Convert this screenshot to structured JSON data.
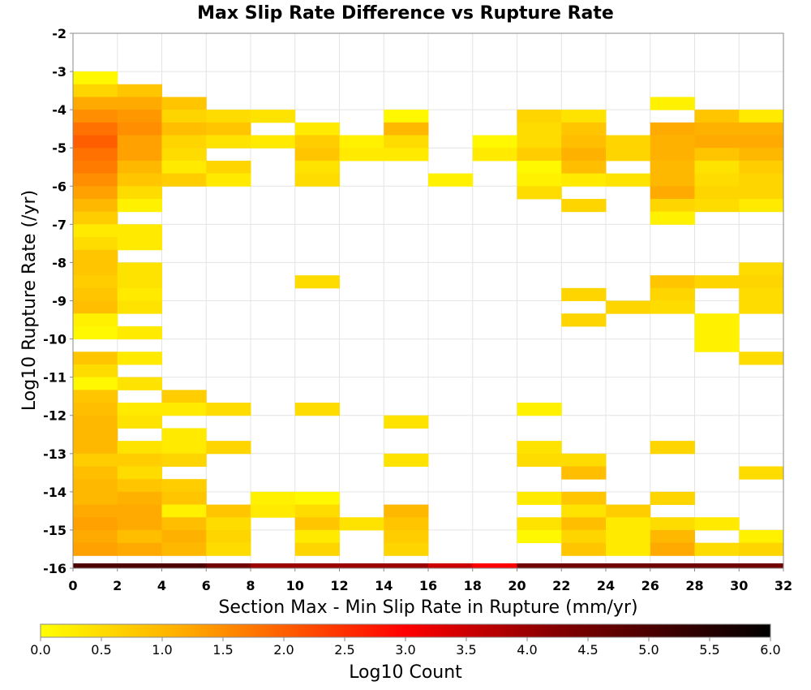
{
  "chart_data": {
    "type": "heatmap",
    "title": "Max Slip Rate Difference vs Rupture Rate",
    "xlabel": "Section Max - Min Slip Rate in Rupture (mm/yr)",
    "ylabel": "Log10 Rupture Rate (/yr)",
    "xlim": [
      0,
      32
    ],
    "ylim": [
      -16,
      -2
    ],
    "x_bin_width": 2,
    "y_bin_width": 0.3333,
    "x_ticks": [
      "0",
      "2",
      "4",
      "6",
      "8",
      "10",
      "12",
      "14",
      "16",
      "18",
      "20",
      "22",
      "24",
      "26",
      "28",
      "30",
      "32"
    ],
    "y_ticks": [
      "-2",
      "-3",
      "-4",
      "-5",
      "-6",
      "-7",
      "-8",
      "-9",
      "-10",
      "-11",
      "-12",
      "-13",
      "-14",
      "-15",
      "-16"
    ],
    "grid": true,
    "colorbar": {
      "label": "Log10 Count",
      "range": [
        0,
        6
      ],
      "ticks": [
        "0.0",
        "0.5",
        "1.0",
        "1.5",
        "2.0",
        "2.5",
        "3.0",
        "3.5",
        "4.0",
        "4.5",
        "5.0",
        "5.5",
        "6.0"
      ],
      "colors": [
        "#ffff00",
        "#ffa500",
        "#ff0000",
        "#000000"
      ]
    },
    "cells": [
      [
        0,
        -3.333,
        0.1
      ],
      [
        0,
        -3.667,
        0.6
      ],
      [
        0,
        -4.0,
        1.2
      ],
      [
        0,
        -4.333,
        1.5
      ],
      [
        0,
        -4.667,
        1.8
      ],
      [
        0,
        -5.0,
        2.0
      ],
      [
        0,
        -5.333,
        1.8
      ],
      [
        0,
        -5.667,
        1.7
      ],
      [
        0,
        -6.0,
        1.5
      ],
      [
        0,
        -6.333,
        1.3
      ],
      [
        0,
        -6.667,
        1.0
      ],
      [
        0,
        -7.0,
        0.7
      ],
      [
        0,
        -7.333,
        0.3
      ],
      [
        0,
        -7.667,
        0.5
      ],
      [
        0,
        -8.0,
        0.8
      ],
      [
        0,
        -8.333,
        0.8
      ],
      [
        0,
        -8.667,
        0.7
      ],
      [
        0,
        -9.0,
        0.8
      ],
      [
        0,
        -9.333,
        0.9
      ],
      [
        0,
        -9.667,
        0.2
      ],
      [
        0,
        -10.0,
        0.1
      ],
      [
        0,
        -10.667,
        0.8
      ],
      [
        0,
        -11.0,
        0.5
      ],
      [
        0,
        -11.333,
        0.1
      ],
      [
        0,
        -11.667,
        0.8
      ],
      [
        0,
        -12.0,
        0.9
      ],
      [
        0,
        -12.333,
        1.0
      ],
      [
        0,
        -12.667,
        1.0
      ],
      [
        0,
        -13.0,
        1.0
      ],
      [
        0,
        -13.333,
        0.7
      ],
      [
        0,
        -13.667,
        0.9
      ],
      [
        0,
        -14.0,
        1.0
      ],
      [
        0,
        -14.333,
        1.0
      ],
      [
        0,
        -14.667,
        1.2
      ],
      [
        0,
        -15.0,
        1.3
      ],
      [
        0,
        -15.333,
        1.2
      ],
      [
        0,
        -15.667,
        1.3
      ],
      [
        0,
        -16.0,
        5.0
      ],
      [
        2,
        -3.667,
        0.8
      ],
      [
        2,
        -4.0,
        1.2
      ],
      [
        2,
        -4.333,
        1.4
      ],
      [
        2,
        -4.667,
        1.5
      ],
      [
        2,
        -5.0,
        1.3
      ],
      [
        2,
        -5.333,
        1.3
      ],
      [
        2,
        -5.667,
        1.0
      ],
      [
        2,
        -6.0,
        0.8
      ],
      [
        2,
        -6.333,
        0.5
      ],
      [
        2,
        -6.667,
        0.2
      ],
      [
        2,
        -7.333,
        0.3
      ],
      [
        2,
        -7.667,
        0.3
      ],
      [
        2,
        -8.333,
        0.4
      ],
      [
        2,
        -8.667,
        0.4
      ],
      [
        2,
        -9.0,
        0.3
      ],
      [
        2,
        -9.333,
        0.4
      ],
      [
        2,
        -10.0,
        0.3
      ],
      [
        2,
        -10.667,
        0.3
      ],
      [
        2,
        -11.333,
        0.4
      ],
      [
        2,
        -12.0,
        0.3
      ],
      [
        2,
        -12.333,
        0.4
      ],
      [
        2,
        -13.0,
        0.4
      ],
      [
        2,
        -13.333,
        0.7
      ],
      [
        2,
        -13.667,
        0.5
      ],
      [
        2,
        -14.0,
        0.8
      ],
      [
        2,
        -14.333,
        1.1
      ],
      [
        2,
        -14.667,
        1.2
      ],
      [
        2,
        -15.0,
        1.2
      ],
      [
        2,
        -15.333,
        0.9
      ],
      [
        2,
        -15.667,
        1.2
      ],
      [
        2,
        -16.0,
        5.0
      ],
      [
        4,
        -4.0,
        0.8
      ],
      [
        4,
        -4.333,
        0.6
      ],
      [
        4,
        -4.667,
        0.9
      ],
      [
        4,
        -5.0,
        0.6
      ],
      [
        4,
        -5.333,
        0.5
      ],
      [
        4,
        -5.667,
        0.3
      ],
      [
        4,
        -6.0,
        0.7
      ],
      [
        4,
        -11.667,
        0.7
      ],
      [
        4,
        -12.0,
        0.3
      ],
      [
        4,
        -12.667,
        0.3
      ],
      [
        4,
        -13.0,
        0.3
      ],
      [
        4,
        -13.333,
        0.6
      ],
      [
        4,
        -14.0,
        0.7
      ],
      [
        4,
        -14.333,
        0.8
      ],
      [
        4,
        -14.667,
        0.2
      ],
      [
        4,
        -15.0,
        0.9
      ],
      [
        4,
        -15.333,
        1.1
      ],
      [
        4,
        -15.667,
        1.0
      ],
      [
        4,
        -16.0,
        5.0
      ],
      [
        6,
        -4.333,
        0.5
      ],
      [
        6,
        -4.667,
        0.8
      ],
      [
        6,
        -5.0,
        0.4
      ],
      [
        6,
        -5.667,
        0.6
      ],
      [
        6,
        -6.0,
        0.3
      ],
      [
        6,
        -12.0,
        0.5
      ],
      [
        6,
        -13.0,
        0.6
      ],
      [
        6,
        -14.667,
        0.8
      ],
      [
        6,
        -15.0,
        0.5
      ],
      [
        6,
        -15.333,
        0.6
      ],
      [
        6,
        -15.667,
        0.5
      ],
      [
        6,
        -16.0,
        4.5
      ],
      [
        8,
        -4.333,
        0.4
      ],
      [
        8,
        -5.0,
        0.3
      ],
      [
        8,
        -14.333,
        0.2
      ],
      [
        8,
        -14.667,
        0.3
      ],
      [
        8,
        -16.0,
        4.0
      ],
      [
        10,
        -4.667,
        0.3
      ],
      [
        10,
        -5.0,
        0.7
      ],
      [
        10,
        -5.333,
        0.8
      ],
      [
        10,
        -5.667,
        0.4
      ],
      [
        10,
        -6.0,
        0.5
      ],
      [
        10,
        -8.667,
        0.5
      ],
      [
        10,
        -12.0,
        0.5
      ],
      [
        10,
        -14.333,
        0.1
      ],
      [
        10,
        -14.667,
        0.5
      ],
      [
        10,
        -15.0,
        0.8
      ],
      [
        10,
        -15.333,
        0.3
      ],
      [
        10,
        -15.667,
        0.6
      ],
      [
        10,
        -16.0,
        4.0
      ],
      [
        12,
        -5.0,
        0.2
      ],
      [
        12,
        -5.333,
        0.3
      ],
      [
        12,
        -15.0,
        0.4
      ],
      [
        12,
        -16.0,
        4.0
      ],
      [
        14,
        -4.333,
        0.1
      ],
      [
        14,
        -4.667,
        1.0
      ],
      [
        14,
        -5.0,
        0.5
      ],
      [
        14,
        -5.333,
        0.3
      ],
      [
        14,
        -12.333,
        0.4
      ],
      [
        14,
        -13.333,
        0.4
      ],
      [
        14,
        -14.667,
        1.0
      ],
      [
        14,
        -15.0,
        0.8
      ],
      [
        14,
        -15.333,
        0.7
      ],
      [
        14,
        -15.667,
        0.6
      ],
      [
        14,
        -16.0,
        4.0
      ],
      [
        16,
        -6.0,
        0.2
      ],
      [
        16,
        -16.0,
        3.5
      ],
      [
        18,
        -5.0,
        0.1
      ],
      [
        18,
        -5.333,
        0.3
      ],
      [
        18,
        -16.0,
        3.0
      ],
      [
        20,
        -4.333,
        0.6
      ],
      [
        20,
        -4.667,
        0.5
      ],
      [
        20,
        -5.0,
        0.5
      ],
      [
        20,
        -5.333,
        0.7
      ],
      [
        20,
        -5.667,
        0.1
      ],
      [
        20,
        -6.0,
        0.2
      ],
      [
        20,
        -6.333,
        0.5
      ],
      [
        20,
        -12.0,
        0.2
      ],
      [
        20,
        -13.0,
        0.4
      ],
      [
        20,
        -13.333,
        0.5
      ],
      [
        20,
        -14.333,
        0.3
      ],
      [
        20,
        -15.0,
        0.4
      ],
      [
        20,
        -15.333,
        0.1
      ],
      [
        20,
        -16.0,
        4.5
      ],
      [
        22,
        -4.333,
        0.4
      ],
      [
        22,
        -4.667,
        0.8
      ],
      [
        22,
        -5.0,
        0.9
      ],
      [
        22,
        -5.333,
        1.1
      ],
      [
        22,
        -5.667,
        0.9
      ],
      [
        22,
        -6.0,
        0.3
      ],
      [
        22,
        -6.667,
        0.6
      ],
      [
        22,
        -9.0,
        0.6
      ],
      [
        22,
        -9.667,
        0.6
      ],
      [
        22,
        -13.333,
        0.5
      ],
      [
        22,
        -13.667,
        0.9
      ],
      [
        22,
        -14.333,
        0.8
      ],
      [
        22,
        -14.667,
        0.4
      ],
      [
        22,
        -15.0,
        0.9
      ],
      [
        22,
        -15.333,
        0.6
      ],
      [
        22,
        -15.667,
        0.8
      ],
      [
        22,
        -16.0,
        4.5
      ],
      [
        24,
        -5.0,
        0.6
      ],
      [
        24,
        -5.333,
        0.6
      ],
      [
        24,
        -6.0,
        0.4
      ],
      [
        24,
        -9.333,
        0.6
      ],
      [
        24,
        -14.667,
        0.7
      ],
      [
        24,
        -15.0,
        0.3
      ],
      [
        24,
        -15.333,
        0.3
      ],
      [
        24,
        -15.667,
        0.3
      ],
      [
        24,
        -16.0,
        4.5
      ],
      [
        26,
        -4.0,
        0.2
      ],
      [
        26,
        -4.667,
        1.2
      ],
      [
        26,
        -5.0,
        1.1
      ],
      [
        26,
        -5.333,
        1.1
      ],
      [
        26,
        -5.667,
        1.0
      ],
      [
        26,
        -6.0,
        1.0
      ],
      [
        26,
        -6.333,
        1.2
      ],
      [
        26,
        -6.667,
        0.6
      ],
      [
        26,
        -7.0,
        0.2
      ],
      [
        26,
        -8.667,
        0.8
      ],
      [
        26,
        -9.0,
        0.6
      ],
      [
        26,
        -9.333,
        0.5
      ],
      [
        26,
        -13.0,
        0.6
      ],
      [
        26,
        -14.333,
        0.6
      ],
      [
        26,
        -15.0,
        0.5
      ],
      [
        26,
        -15.333,
        1.0
      ],
      [
        26,
        -15.667,
        1.2
      ],
      [
        26,
        -16.0,
        4.5
      ],
      [
        28,
        -4.333,
        0.8
      ],
      [
        28,
        -4.667,
        1.1
      ],
      [
        28,
        -5.0,
        1.2
      ],
      [
        28,
        -5.333,
        0.8
      ],
      [
        28,
        -5.667,
        0.4
      ],
      [
        28,
        -6.0,
        0.5
      ],
      [
        28,
        -6.333,
        0.6
      ],
      [
        28,
        -6.667,
        0.5
      ],
      [
        28,
        -8.667,
        0.6
      ],
      [
        28,
        -9.667,
        0.2
      ],
      [
        28,
        -10.0,
        0.2
      ],
      [
        28,
        -10.333,
        0.2
      ],
      [
        28,
        -15.0,
        0.3
      ],
      [
        28,
        -15.667,
        0.5
      ],
      [
        28,
        -16.0,
        4.5
      ],
      [
        30,
        -4.333,
        0.3
      ],
      [
        30,
        -4.667,
        1.1
      ],
      [
        30,
        -5.0,
        1.2
      ],
      [
        30,
        -5.333,
        1.0
      ],
      [
        30,
        -5.667,
        0.7
      ],
      [
        30,
        -6.0,
        0.6
      ],
      [
        30,
        -6.333,
        0.6
      ],
      [
        30,
        -6.667,
        0.3
      ],
      [
        30,
        -8.333,
        0.5
      ],
      [
        30,
        -8.667,
        0.6
      ],
      [
        30,
        -9.0,
        0.5
      ],
      [
        30,
        -9.333,
        0.5
      ],
      [
        30,
        -10.667,
        0.5
      ],
      [
        30,
        -13.667,
        0.5
      ],
      [
        30,
        -15.333,
        0.2
      ],
      [
        30,
        -15.667,
        0.6
      ],
      [
        30,
        -16.0,
        4.5
      ]
    ]
  }
}
